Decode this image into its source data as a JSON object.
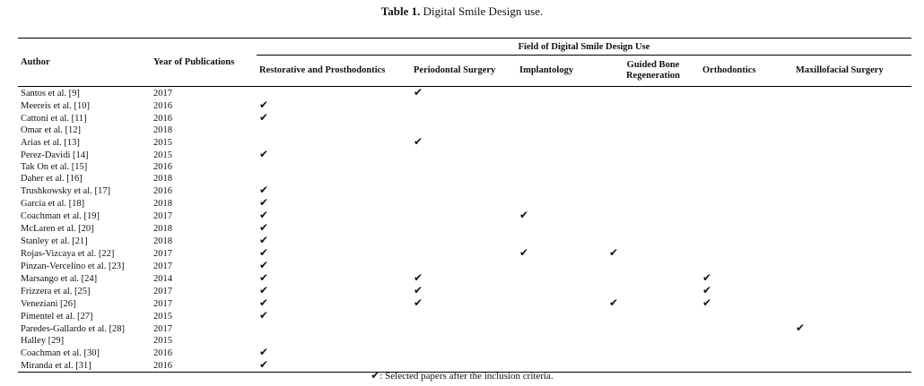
{
  "caption": {
    "label": "Table 1.",
    "text": "Digital Smile Design use."
  },
  "table": {
    "author_header": "Author",
    "year_header": "Year of Publications",
    "group_header": "Field of Digital Smile Design Use",
    "field_headers": [
      "Restorative and Prosthodontics",
      "Periodontal Surgery",
      "Implantology",
      "Guided Bone Regeneration",
      "Orthodontics",
      "Maxillofacial Surgery"
    ],
    "check_symbol": "✔",
    "rows": [
      {
        "author": "Santos et al. [9]",
        "year": "2017",
        "fields": [
          0,
          1,
          0,
          0,
          0,
          0
        ]
      },
      {
        "author": "Meereis et al. [10]",
        "year": "2016",
        "fields": [
          1,
          0,
          0,
          0,
          0,
          0
        ]
      },
      {
        "author": "Cattoni et al. [11]",
        "year": "2016",
        "fields": [
          1,
          0,
          0,
          0,
          0,
          0
        ]
      },
      {
        "author": "Omar et al. [12]",
        "year": "2018",
        "fields": [
          0,
          0,
          0,
          0,
          0,
          0
        ]
      },
      {
        "author": "Arias et al. [13]",
        "year": "2015",
        "fields": [
          0,
          1,
          0,
          0,
          0,
          0
        ]
      },
      {
        "author": "Perez-Davidi [14]",
        "year": "2015",
        "fields": [
          1,
          0,
          0,
          0,
          0,
          0
        ]
      },
      {
        "author": "Tak On et al. [15]",
        "year": "2016",
        "fields": [
          0,
          0,
          0,
          0,
          0,
          0
        ]
      },
      {
        "author": "Daher et al. [16]",
        "year": "2018",
        "fields": [
          0,
          0,
          0,
          0,
          0,
          0
        ]
      },
      {
        "author": "Trushkowsky et al. [17]",
        "year": "2016",
        "fields": [
          1,
          0,
          0,
          0,
          0,
          0
        ]
      },
      {
        "author": "Garcia et al. [18]",
        "year": "2018",
        "fields": [
          1,
          0,
          0,
          0,
          0,
          0
        ]
      },
      {
        "author": "Coachman et al. [19]",
        "year": "2017",
        "fields": [
          1,
          0,
          1,
          0,
          0,
          0
        ]
      },
      {
        "author": "McLaren et al. [20]",
        "year": "2018",
        "fields": [
          1,
          0,
          0,
          0,
          0,
          0
        ]
      },
      {
        "author": "Stanley et al. [21]",
        "year": "2018",
        "fields": [
          1,
          0,
          0,
          0,
          0,
          0
        ]
      },
      {
        "author": "Rojas-Vizcaya et al. [22]",
        "year": "2017",
        "fields": [
          1,
          0,
          1,
          1,
          0,
          0
        ]
      },
      {
        "author": "Pinzan-Vercelino et al. [23]",
        "year": "2017",
        "fields": [
          1,
          0,
          0,
          0,
          0,
          0
        ]
      },
      {
        "author": "Marsango et al. [24]",
        "year": "2014",
        "fields": [
          1,
          1,
          0,
          0,
          1,
          0
        ]
      },
      {
        "author": "Frizzera et al. [25]",
        "year": "2017",
        "fields": [
          1,
          1,
          0,
          0,
          1,
          0
        ]
      },
      {
        "author": "Veneziani [26]",
        "year": "2017",
        "fields": [
          1,
          1,
          0,
          1,
          1,
          0
        ]
      },
      {
        "author": "Pimentel et al. [27]",
        "year": "2015",
        "fields": [
          1,
          0,
          0,
          0,
          0,
          0
        ]
      },
      {
        "author": "Paredes-Gallardo et al. [28]",
        "year": "2017",
        "fields": [
          0,
          0,
          0,
          0,
          0,
          1
        ]
      },
      {
        "author": "Halley [29]",
        "year": "2015",
        "fields": [
          0,
          0,
          0,
          0,
          0,
          0
        ]
      },
      {
        "author": "Coachman et al. [30]",
        "year": "2016",
        "fields": [
          1,
          0,
          0,
          0,
          0,
          0
        ]
      },
      {
        "author": "Miranda et al. [31]",
        "year": "2016",
        "fields": [
          1,
          0,
          0,
          0,
          0,
          0
        ]
      }
    ]
  },
  "footnote": {
    "symbol": "✔",
    "text": ": Selected papers after the inclusion criteria."
  }
}
